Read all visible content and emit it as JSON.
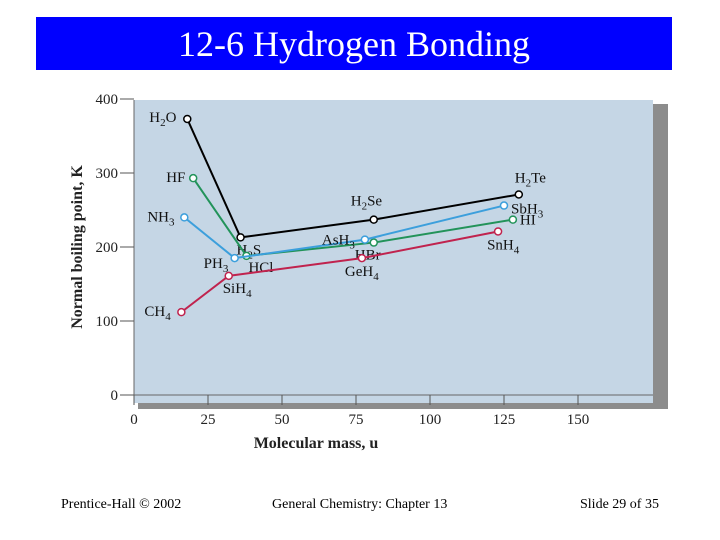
{
  "slide": {
    "title": "12-6 Hydrogen Bonding",
    "footer_left": "Prentice-Hall © 2002",
    "footer_center": "General Chemistry: Chapter 13",
    "footer_right": "Slide 29 of 35",
    "title_bg": "#0000ff"
  },
  "chart_data": {
    "type": "line",
    "title": "",
    "xlabel": "Molecular mass, u",
    "ylabel": "Normal boiling point, K",
    "xlim": [
      0,
      150
    ],
    "ylim": [
      0,
      400
    ],
    "xticks": [
      0,
      25,
      50,
      75,
      100,
      125,
      150
    ],
    "yticks": [
      0,
      100,
      200,
      300,
      400
    ],
    "background": "#c5d6e5",
    "series": [
      {
        "id": "group16",
        "color": "#000000",
        "points": [
          {
            "x": 18,
            "y": 373,
            "sym": "H",
            "sub": "2",
            "tail": "O"
          },
          {
            "x": 36,
            "y": 213,
            "sym": "H",
            "sub": "2",
            "tail": "S"
          },
          {
            "x": 81,
            "y": 237,
            "sym": "H",
            "sub": "2",
            "tail": "Se"
          },
          {
            "x": 130,
            "y": 271,
            "sym": "H",
            "sub": "2",
            "tail": "Te"
          }
        ]
      },
      {
        "id": "group17",
        "color": "#22935a",
        "points": [
          {
            "x": 20,
            "y": 293,
            "sym": "HF",
            "sub": "",
            "tail": ""
          },
          {
            "x": 38,
            "y": 188,
            "sym": "HCl",
            "sub": "",
            "tail": ""
          },
          {
            "x": 81,
            "y": 206,
            "sym": "HBr",
            "sub": "",
            "tail": ""
          },
          {
            "x": 128,
            "y": 237,
            "sym": "HI",
            "sub": "",
            "tail": ""
          }
        ]
      },
      {
        "id": "group15",
        "color": "#3c9fdc",
        "points": [
          {
            "x": 17,
            "y": 240,
            "sym": "NH",
            "sub": "3",
            "tail": ""
          },
          {
            "x": 34,
            "y": 185,
            "sym": "PH",
            "sub": "3",
            "tail": ""
          },
          {
            "x": 78,
            "y": 210,
            "sym": "AsH",
            "sub": "3",
            "tail": ""
          },
          {
            "x": 125,
            "y": 256,
            "sym": "SbH",
            "sub": "3",
            "tail": ""
          }
        ]
      },
      {
        "id": "group14",
        "color": "#c0234e",
        "points": [
          {
            "x": 16,
            "y": 112,
            "sym": "CH",
            "sub": "4",
            "tail": ""
          },
          {
            "x": 32,
            "y": 161,
            "sym": "SiH",
            "sub": "4",
            "tail": ""
          },
          {
            "x": 77,
            "y": 185,
            "sym": "GeH",
            "sub": "4",
            "tail": ""
          },
          {
            "x": 123,
            "y": 221,
            "sym": "SnH",
            "sub": "4",
            "tail": ""
          }
        ]
      }
    ]
  }
}
